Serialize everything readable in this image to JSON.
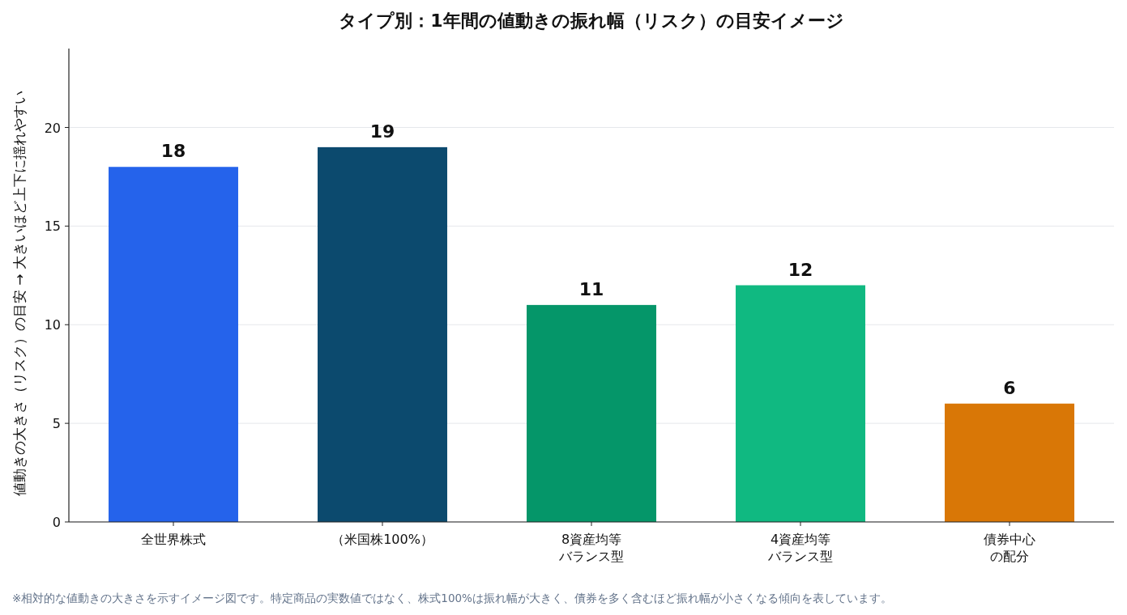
{
  "chart_data": {
    "type": "bar",
    "title": "タイプ別：1年間の値動きの振れ幅（リスク）の目安イメージ",
    "ylabel": "値動きの大きさ（リスク）の目安 → 大きいほど上下に揺れやすい",
    "categories": [
      "全世界株式",
      "（米国株100%）",
      "8資産均等バランス型",
      "4資産均等バランス型",
      "債券中心の配分"
    ],
    "values": [
      18,
      19,
      11,
      12,
      6
    ],
    "colors": [
      "#2563eb",
      "#0c4a6e",
      "#059669",
      "#10b981",
      "#d97706"
    ],
    "ylim": [
      0,
      24
    ],
    "yticks": [
      0,
      5,
      10,
      15,
      20
    ],
    "grid": "y",
    "data_labels": true,
    "annotations": [
      "※相対的な値動きの大きさを示すイメージ図です。特定商品の実数値ではなく、株式100%は振れ幅が大きく、債券を多く含むほど振れ幅が小さくなる傾向を表しています。"
    ]
  }
}
